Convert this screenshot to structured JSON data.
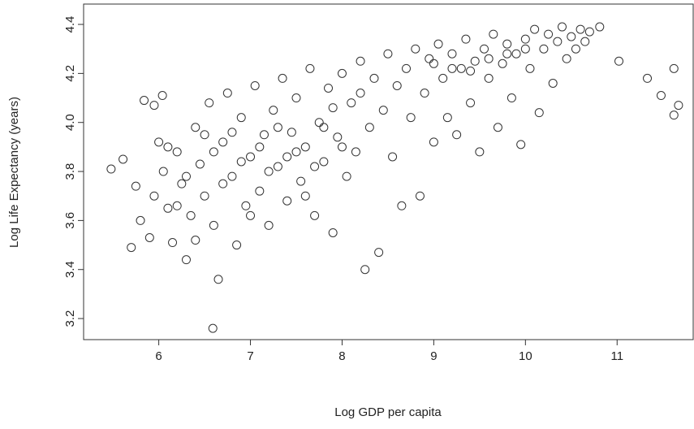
{
  "chart_data": {
    "type": "scatter",
    "xlabel": "Log GDP per capita",
    "ylabel": "Log Life Expectancy (years)",
    "color": "#333333",
    "xlim": [
      5.18,
      11.83
    ],
    "ylim": [
      3.114,
      4.483
    ],
    "xticks": [
      6,
      7,
      8,
      9,
      10,
      11
    ],
    "yticks": [
      3.2,
      3.4,
      3.6,
      3.8,
      {
        "value": 4,
        "label": "4.0"
      },
      4.2,
      4.4
    ],
    "x": [
      5.48,
      5.61,
      5.7,
      5.84,
      5.95,
      6.04,
      6.59,
      5.75,
      5.8,
      5.9,
      5.95,
      6.0,
      6.05,
      6.1,
      6.15,
      6.2,
      6.25,
      6.3,
      6.35,
      6.4,
      6.45,
      6.5,
      6.55,
      6.6,
      6.65,
      6.7,
      6.75,
      6.8,
      6.85,
      6.9,
      6.95,
      7.0,
      7.05,
      7.1,
      7.15,
      7.2,
      7.25,
      7.3,
      7.35,
      7.4,
      7.45,
      7.5,
      7.55,
      7.6,
      7.65,
      7.7,
      7.75,
      7.8,
      7.85,
      7.9,
      7.95,
      8.0,
      8.05,
      8.1,
      8.15,
      8.2,
      8.25,
      8.3,
      8.35,
      8.4,
      8.45,
      8.5,
      8.55,
      8.6,
      8.65,
      8.7,
      8.75,
      8.8,
      8.85,
      8.9,
      8.95,
      9.0,
      9.05,
      9.1,
      9.15,
      9.2,
      9.25,
      9.3,
      9.35,
      9.4,
      9.45,
      9.5,
      9.55,
      9.6,
      9.65,
      9.7,
      9.75,
      9.8,
      9.85,
      9.9,
      9.95,
      10.0,
      10.05,
      10.1,
      10.15,
      10.2,
      10.25,
      10.3,
      10.35,
      10.4,
      10.45,
      10.5,
      10.55,
      10.6,
      10.65,
      10.7,
      10.81,
      11.02,
      11.33,
      11.48,
      11.62,
      11.67,
      11.62,
      6.2,
      6.4,
      6.6,
      6.8,
      7.0,
      7.2,
      7.4,
      7.6,
      7.8,
      8.0,
      8.2,
      9.0,
      9.2,
      9.4,
      9.6,
      9.8,
      10.0,
      6.1,
      6.3,
      6.5,
      6.7,
      6.9,
      7.1,
      7.3,
      7.5,
      7.7,
      7.9
    ],
    "values": [
      3.81,
      3.85,
      3.49,
      4.09,
      4.07,
      4.11,
      3.16,
      3.74,
      3.6,
      3.53,
      3.7,
      3.92,
      3.8,
      3.65,
      3.51,
      3.88,
      3.75,
      3.44,
      3.62,
      3.98,
      3.83,
      3.7,
      4.08,
      3.58,
      3.36,
      3.92,
      4.12,
      3.78,
      3.5,
      4.02,
      3.66,
      3.86,
      4.15,
      3.72,
      3.95,
      3.58,
      4.05,
      3.82,
      4.18,
      3.68,
      3.96,
      4.1,
      3.76,
      3.9,
      4.22,
      3.62,
      4.0,
      3.84,
      4.14,
      3.55,
      3.94,
      4.2,
      3.78,
      4.08,
      3.88,
      4.25,
      3.4,
      3.98,
      4.18,
      3.47,
      4.05,
      4.28,
      3.86,
      4.15,
      3.66,
      4.22,
      4.02,
      4.3,
      3.7,
      4.12,
      4.26,
      3.92,
      4.32,
      4.18,
      4.02,
      4.28,
      3.95,
      4.22,
      4.34,
      4.08,
      4.25,
      3.88,
      4.3,
      4.18,
      4.36,
      3.98,
      4.24,
      4.32,
      4.1,
      4.28,
      3.91,
      4.34,
      4.22,
      4.38,
      4.04,
      4.3,
      4.36,
      4.16,
      4.33,
      4.39,
      4.26,
      4.35,
      4.3,
      4.38,
      4.33,
      4.37,
      4.39,
      4.25,
      4.18,
      4.11,
      4.22,
      4.07,
      4.03,
      3.66,
      3.52,
      3.88,
      3.96,
      3.62,
      3.8,
      3.86,
      3.7,
      3.98,
      3.9,
      4.12,
      4.24,
      4.22,
      4.21,
      4.26,
      4.28,
      4.3,
      3.9,
      3.78,
      3.95,
      3.75,
      3.84,
      3.9,
      3.98,
      3.88,
      3.82,
      4.06
    ]
  }
}
